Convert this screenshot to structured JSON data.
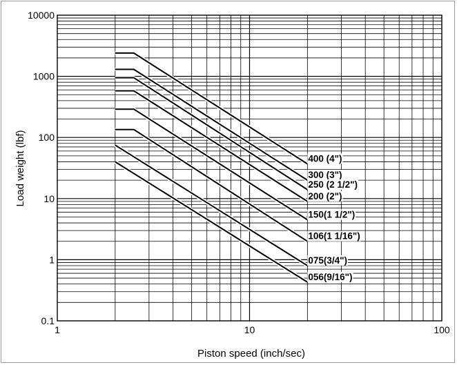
{
  "chart_data": {
    "type": "line",
    "title": "",
    "xlabel": "Piston speed (inch/sec)",
    "ylabel": "Load weight (lbf)",
    "xscale": "log",
    "yscale": "log",
    "xlim": [
      1,
      100
    ],
    "ylim": [
      0.1,
      10000
    ],
    "grid": true,
    "x_ticks": [
      {
        "value": 1,
        "label": "1"
      },
      {
        "value": 10,
        "label": "10"
      },
      {
        "value": 100,
        "label": "100"
      }
    ],
    "y_ticks": [
      {
        "value": 0.1,
        "label": "0.1"
      },
      {
        "value": 1,
        "label": "1"
      },
      {
        "value": 10,
        "label": "10"
      },
      {
        "value": 100,
        "label": "100"
      },
      {
        "value": 1000,
        "label": "1000"
      },
      {
        "value": 10000,
        "label": "10000"
      }
    ],
    "series": [
      {
        "name": "400 (4\")",
        "x": [
          2,
          2.5,
          20
        ],
        "y": [
          2400,
          2400,
          37
        ]
      },
      {
        "name": "300 (3\")",
        "x": [
          2,
          2.5,
          20
        ],
        "y": [
          1300,
          1300,
          20
        ]
      },
      {
        "name": "250 (2 1/2\")",
        "x": [
          2,
          2.5,
          20
        ],
        "y": [
          950,
          950,
          14
        ]
      },
      {
        "name": "200 (2\")",
        "x": [
          2,
          2.5,
          20
        ],
        "y": [
          580,
          580,
          9
        ]
      },
      {
        "name": "150(1 1/2\")",
        "x": [
          2,
          2.5,
          20
        ],
        "y": [
          290,
          290,
          4.5
        ]
      },
      {
        "name": "106(1 1/16\")",
        "x": [
          2,
          2.5,
          20
        ],
        "y": [
          135,
          135,
          2
        ]
      },
      {
        "name": "075(3/4\")",
        "x": [
          2,
          20
        ],
        "y": [
          75,
          0.8
        ]
      },
      {
        "name": "056(9/16\")",
        "x": [
          2,
          20
        ],
        "y": [
          40,
          0.43
        ]
      }
    ]
  }
}
